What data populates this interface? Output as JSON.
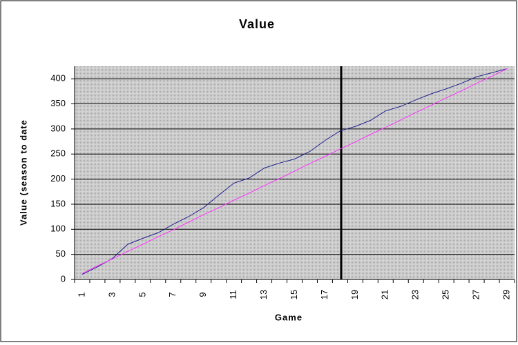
{
  "chart_data": {
    "type": "line",
    "title": "Value",
    "x_label": "Game",
    "y_label": "Value (season to date",
    "categories": [
      1,
      null,
      3,
      null,
      5,
      null,
      7,
      null,
      9,
      null,
      11,
      null,
      13,
      null,
      15,
      null,
      17,
      null,
      19,
      null,
      21,
      null,
      23,
      null,
      25,
      null,
      27,
      null,
      29
    ],
    "series": [
      {
        "color": "#1f1f8f",
        "values": [
          10,
          25,
          42,
          70,
          82,
          93,
          110,
          125,
          143,
          168,
          192,
          202,
          222,
          232,
          240,
          255,
          277,
          296,
          305,
          317,
          336,
          345,
          358,
          370,
          380,
          391,
          404,
          412,
          420
        ]
      },
      {
        "color": "#ff33ff",
        "values": [
          12,
          27,
          41,
          56,
          70,
          85,
          99,
          114,
          129,
          143,
          158,
          172,
          187,
          201,
          216,
          231,
          245,
          260,
          274,
          289,
          303,
          318,
          333,
          347,
          362,
          376,
          391,
          405,
          420
        ]
      }
    ],
    "ylim": [
      0,
      425
    ],
    "yticks": [
      0,
      50,
      100,
      150,
      200,
      250,
      300,
      350,
      400
    ],
    "grid": true
  }
}
